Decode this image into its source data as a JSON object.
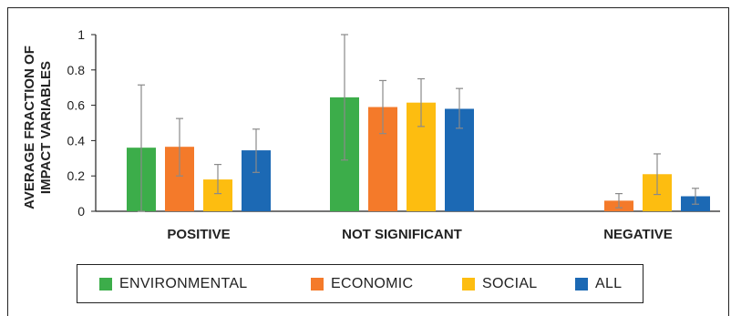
{
  "chart_data": {
    "type": "bar",
    "ylabel_lines": [
      "AVERAGE FRACTION OF",
      "IMPACT VARIABLES"
    ],
    "ylim": [
      0,
      1
    ],
    "yticks": [
      "0",
      "0.2",
      "0.4",
      "0.6",
      "0.8",
      "1"
    ],
    "categories": [
      "POSITIVE",
      "NOT SIGNIFICANT",
      "NEGATIVE"
    ],
    "series": [
      {
        "name": "ENVIRONMENTAL",
        "color": "#3cad4a",
        "values": [
          0.36,
          0.645,
          null
        ],
        "err_low": [
          0.0,
          0.29,
          null
        ],
        "err_high": [
          0.715,
          1.0,
          null
        ]
      },
      {
        "name": "ECONOMIC",
        "color": "#f47a2a",
        "values": [
          0.365,
          0.59,
          0.06
        ],
        "err_low": [
          0.2,
          0.44,
          0.02
        ],
        "err_high": [
          0.525,
          0.74,
          0.1
        ]
      },
      {
        "name": "SOCIAL",
        "color": "#fdbd10",
        "values": [
          0.18,
          0.615,
          0.21
        ],
        "err_low": [
          0.1,
          0.48,
          0.095
        ],
        "err_high": [
          0.265,
          0.75,
          0.325
        ]
      },
      {
        "name": "ALL",
        "color": "#1c69b4",
        "values": [
          0.345,
          0.58,
          0.085
        ],
        "err_low": [
          0.22,
          0.47,
          0.04
        ],
        "err_high": [
          0.465,
          0.695,
          0.13
        ]
      }
    ],
    "grid": false,
    "legend_position": "bottom"
  }
}
